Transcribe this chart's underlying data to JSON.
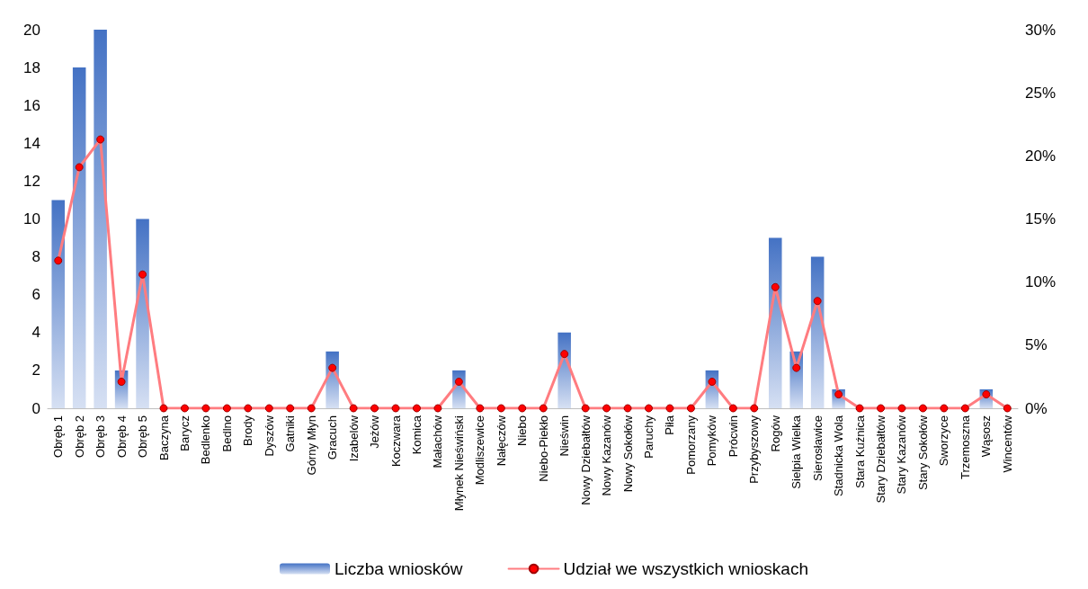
{
  "chart_data": {
    "type": "bar",
    "categories": [
      "Obręb 1",
      "Obręb 2",
      "Obręb 3",
      "Obręb 4",
      "Obręb 5",
      "Baczyna",
      "Barycz",
      "Bedlenko",
      "Bedlno",
      "Brody",
      "Dyszów",
      "Gatniki",
      "Górny Młyn",
      "Gracuch",
      "Izabelów",
      "Jeżów",
      "Koczwara",
      "Komica",
      "Małachów",
      "Młynek Nieświński",
      "Modliszewice",
      "Nałęczów",
      "Niebo",
      "Niebo-Piekło",
      "Nieświn",
      "Nowy Dziebałtów",
      "Nowy Kazanów",
      "Nowy Sokołów",
      "Paruchy",
      "Piła",
      "Pomorzany",
      "Pomyków",
      "Prócwin",
      "Przybyszowy",
      "Rogów",
      "Sielpia Wielka",
      "Sierosławice",
      "Stadnicka Wola",
      "Stara Kuźnica",
      "Stary Dziebałtów",
      "Stary Kazanów",
      "Stary Sokołów",
      "Sworzyce",
      "Trzemoszna",
      "Wąsosz",
      "Wincentów"
    ],
    "series": [
      {
        "name": "Liczba wniosków",
        "color": "#4472c4",
        "values": [
          11,
          18,
          20,
          2,
          10,
          0,
          0,
          0,
          0,
          0,
          0,
          0,
          0,
          3,
          0,
          0,
          0,
          0,
          0,
          2,
          0,
          0,
          0,
          0,
          4,
          0,
          0,
          0,
          0,
          0,
          0,
          2,
          0,
          0,
          9,
          3,
          8,
          1,
          0,
          0,
          0,
          0,
          0,
          0,
          1,
          0
        ]
      },
      {
        "name": "Udział we wszystkich wnioskach",
        "type": "line",
        "axis": "y2",
        "color": "#ff7c80",
        "values": [
          11.7,
          19.1,
          21.3,
          2.1,
          10.6,
          0,
          0,
          0,
          0,
          0,
          0,
          0,
          0,
          3.2,
          0,
          0,
          0,
          0,
          0,
          2.1,
          0,
          0,
          0,
          0,
          4.3,
          0,
          0,
          0,
          0,
          0,
          0,
          2.1,
          0,
          0,
          9.6,
          3.2,
          8.5,
          1.1,
          0,
          0,
          0,
          0,
          0,
          0,
          1.1,
          0
        ]
      }
    ],
    "ylim": [
      0,
      20
    ],
    "yticks": [
      0,
      2,
      4,
      6,
      8,
      10,
      12,
      14,
      16,
      18,
      20
    ],
    "y2lim": [
      0,
      30
    ],
    "y2ticks": [
      {
        "value": 0,
        "label": "0%"
      },
      {
        "value": 5,
        "label": "5%"
      },
      {
        "value": 10,
        "label": "10%"
      },
      {
        "value": 15,
        "label": "15%"
      },
      {
        "value": 20,
        "label": "20%"
      },
      {
        "value": 25,
        "label": "25%"
      },
      {
        "value": 30,
        "label": "30%"
      }
    ],
    "legend": "bottom",
    "marker": "circle",
    "line_style": "solid",
    "grid": false
  }
}
